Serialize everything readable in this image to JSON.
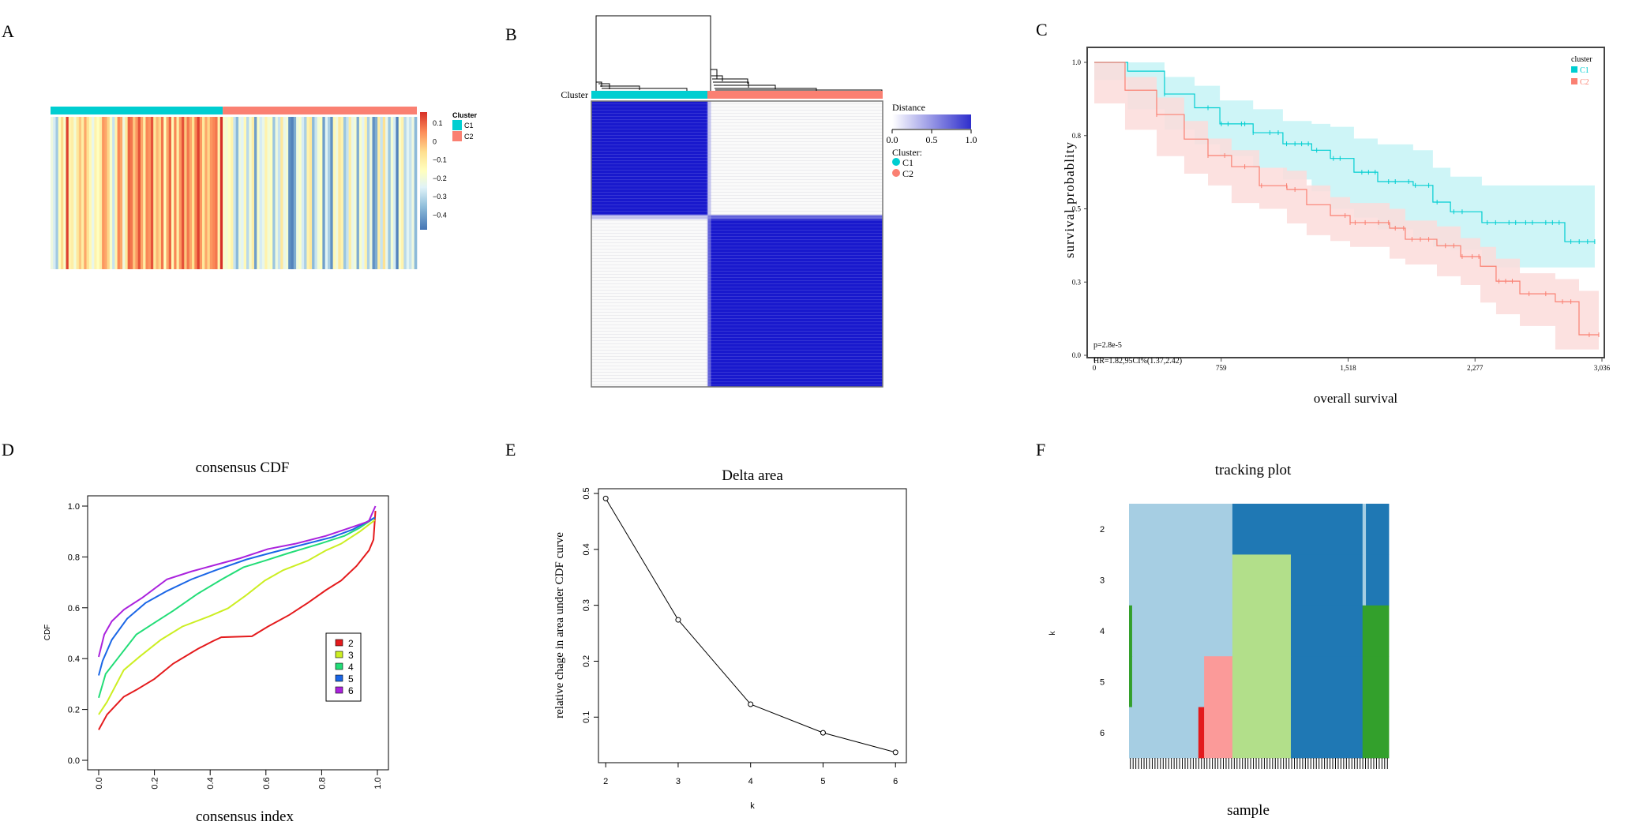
{
  "figure": {
    "panel_labels": [
      "A",
      "B",
      "C",
      "D",
      "E",
      "F"
    ]
  },
  "chart_data": [
    {
      "panel": "A",
      "type": "heatmap",
      "title": "",
      "annotation": {
        "name": "Cluster",
        "groups": [
          {
            "label": "C1",
            "color": "#00CED1",
            "fraction": 0.47
          },
          {
            "label": "C2",
            "color": "#FA8072",
            "fraction": 0.53
          }
        ]
      },
      "colorbar": {
        "ticks": [
          "0.1",
          "0",
          "−0.1",
          "−0.2",
          "−0.3",
          "−0.4"
        ],
        "tick_values": [
          0.1,
          0,
          -0.1,
          -0.2,
          -0.3,
          -0.4
        ],
        "range": [
          -0.48,
          0.16
        ],
        "colors": [
          "#4575B4",
          "#91BFDB",
          "#E0F3F8",
          "#FFFFBF",
          "#FEE090",
          "#FC8D59",
          "#D73027"
        ]
      },
      "legend": {
        "title": "Cluster",
        "items": [
          {
            "label": "C1",
            "color": "#00CED1"
          },
          {
            "label": "C2",
            "color": "#FA8072"
          }
        ]
      },
      "c1_column_values": [
        -0.22,
        -0.28,
        -0.35,
        -0.15,
        -0.05,
        -0.18,
        0.14,
        -0.12,
        -0.1,
        -0.2,
        -0.08,
        -0.02,
        -0.1,
        0.02,
        -0.06,
        -0.14,
        -0.24,
        -0.12,
        -0.16,
        -0.1,
        0.04,
        0.02,
        -0.04,
        -0.18,
        -0.3,
        -0.12,
        0.06,
        0.02,
        -0.22,
        -0.08,
        0.1,
        0.08,
        -0.02,
        0.04,
        0.12,
        0.02,
        -0.1,
        0.06,
        0.04,
        0.12,
        -0.08,
        0.0,
        -0.04,
        0.08,
        -0.16,
        0.02,
        0.1,
        -0.14,
        0.06,
        -0.1,
        0.04,
        0.12,
        -0.02,
        0.08,
        0.02,
        -0.06,
        0.06,
        0.14,
        0.04,
        -0.08,
        0.02,
        -0.04,
        0.04,
        0.06,
        0.08,
        -0.12,
        0.16
      ],
      "c2_column_values": [
        -0.18,
        -0.2,
        -0.16,
        -0.12,
        -0.3,
        -0.38,
        -0.22,
        -0.26,
        -0.14,
        -0.32,
        -0.2,
        -0.1,
        -0.42,
        -0.18,
        -0.28,
        -0.24,
        -0.12,
        -0.2,
        -0.16,
        -0.36,
        -0.22,
        -0.3,
        -0.08,
        -0.24,
        -0.2,
        -0.44,
        -0.46,
        -0.4,
        -0.22,
        -0.18,
        -0.28,
        -0.34,
        -0.12,
        -0.08,
        -0.38,
        -0.3,
        -0.2,
        -0.16,
        -0.42,
        -0.26,
        -0.34,
        -0.44,
        -0.14,
        -0.22,
        -0.08,
        -0.12,
        -0.36,
        -0.3,
        -0.1,
        -0.24,
        -0.2,
        -0.4,
        -0.18,
        -0.26,
        -0.12,
        -0.34,
        -0.22,
        -0.44,
        -0.4,
        -0.1,
        -0.3,
        -0.06,
        -0.24,
        -0.36,
        -0.2,
        -0.28,
        -0.46,
        -0.18,
        -0.12,
        -0.32,
        -0.26,
        -0.3,
        -0.22,
        -0.38
      ]
    },
    {
      "panel": "B",
      "type": "heatmap",
      "title": "",
      "row_label": "Cluster",
      "blocks": [
        {
          "rows": "C1",
          "cols": "C1",
          "distance": 1.0
        },
        {
          "rows": "C1",
          "cols": "C2",
          "distance": 0.0
        },
        {
          "rows": "C2",
          "cols": "C1",
          "distance": 0.0
        },
        {
          "rows": "C2",
          "cols": "C2",
          "distance": 1.0
        }
      ],
      "cluster_fraction_c1": 0.4,
      "colorbar": {
        "title": "Distance",
        "ticks": [
          "0.0",
          "0.5",
          "1.0"
        ],
        "tick_values": [
          0,
          0.5,
          1.0
        ],
        "low_color": "#FFFFFF",
        "high_color": "#2E2ECC"
      },
      "legend": {
        "title": "Cluster:",
        "items": [
          {
            "label": "C1",
            "color": "#00CED1"
          },
          {
            "label": "C2",
            "color": "#FA8072"
          }
        ]
      },
      "block_color": "#1919CD"
    },
    {
      "panel": "C",
      "type": "line",
      "title": "",
      "xlabel": "overall survival",
      "ylabel": "survival probablity",
      "xlim": [
        0,
        3036
      ],
      "ylim": [
        0,
        1
      ],
      "xticks": [
        0,
        759,
        1518,
        2277,
        3036
      ],
      "xtick_labels": [
        "0",
        "759",
        "1,518",
        "2,277",
        "3,036"
      ],
      "yticks": [
        0,
        0.25,
        0.5,
        0.75,
        1.0
      ],
      "ytick_labels": [
        "0.0",
        "0.3",
        "0.5",
        "0.8",
        "1.0"
      ],
      "legend": {
        "title": "cluster",
        "position": "top-right"
      },
      "annotations": [
        "p=2.8e-5",
        "HR=1.82,95CI%(1.37,2.42)"
      ],
      "series": [
        {
          "name": "C1",
          "color": "#00CED1",
          "band_color": "#C6F3F6",
          "x": [
            0,
            200,
            420,
            600,
            751,
            950,
            1128,
            1300,
            1412,
            1553,
            1695,
            1907,
            2025,
            2130,
            2318,
            2814,
            2993
          ],
          "y": [
            1.0,
            0.97,
            0.892,
            0.845,
            0.79,
            0.76,
            0.722,
            0.7,
            0.672,
            0.625,
            0.593,
            0.58,
            0.523,
            0.49,
            0.453,
            0.388,
            0.388
          ],
          "lower": [
            1.0,
            0.94,
            0.84,
            0.77,
            0.72,
            0.68,
            0.64,
            0.6,
            0.56,
            0.5,
            0.47,
            0.43,
            0.4,
            0.37,
            0.36,
            0.3,
            0.3
          ],
          "upper": [
            1.0,
            1.0,
            0.95,
            0.92,
            0.87,
            0.84,
            0.8,
            0.79,
            0.78,
            0.74,
            0.72,
            0.7,
            0.64,
            0.61,
            0.58,
            0.58,
            0.58
          ],
          "censor_x": [
            420,
            680,
            760,
            800,
            880,
            900,
            950,
            1050,
            1100,
            1150,
            1200,
            1240,
            1280,
            1330,
            1430,
            1470,
            1600,
            1640,
            1680,
            1760,
            1800,
            1880,
            1920,
            2000,
            2050,
            2150,
            2200,
            2350,
            2400,
            2480,
            2520,
            2580,
            2620,
            2700,
            2740,
            2780,
            2850,
            2900,
            2950,
            2993
          ]
        },
        {
          "name": "C2",
          "color": "#FA8072",
          "band_color": "#FCDCDA",
          "x": [
            0,
            184,
            373,
            538,
            680,
            821,
            987,
            1152,
            1270,
            1412,
            1530,
            1766,
            1860,
            2049,
            2191,
            2309,
            2403,
            2545,
            2757,
            2899,
            3017
          ],
          "y": [
            1.0,
            0.905,
            0.822,
            0.738,
            0.682,
            0.644,
            0.579,
            0.566,
            0.514,
            0.477,
            0.453,
            0.434,
            0.396,
            0.374,
            0.337,
            0.304,
            0.253,
            0.21,
            0.183,
            0.07,
            0.07
          ],
          "lower": [
            1.0,
            0.86,
            0.77,
            0.68,
            0.62,
            0.58,
            0.52,
            0.5,
            0.45,
            0.41,
            0.39,
            0.37,
            0.33,
            0.31,
            0.27,
            0.24,
            0.18,
            0.14,
            0.1,
            0.02,
            0.02
          ],
          "upper": [
            1.0,
            0.95,
            0.88,
            0.8,
            0.74,
            0.7,
            0.64,
            0.63,
            0.58,
            0.54,
            0.52,
            0.5,
            0.46,
            0.44,
            0.4,
            0.37,
            0.33,
            0.28,
            0.26,
            0.22,
            0.22
          ],
          "censor_x": [
            373,
            680,
            780,
            900,
            1000,
            1150,
            1200,
            1500,
            1530,
            1560,
            1620,
            1700,
            1760,
            1800,
            1850,
            1900,
            1950,
            2000,
            2100,
            2150,
            2200,
            2260,
            2300,
            2420,
            2460,
            2500,
            2600,
            2700,
            2800,
            2850,
            2960,
            3017
          ]
        }
      ]
    },
    {
      "panel": "D",
      "type": "line",
      "title": "consensus CDF",
      "xlabel": "consensus index",
      "ylabel": "CDF",
      "xlim": [
        0,
        1
      ],
      "ylim": [
        0,
        1
      ],
      "xticks": [
        0,
        0.2,
        0.4,
        0.6,
        0.8,
        1.0
      ],
      "xtick_labels": [
        "0.0",
        "0.2",
        "0.4",
        "0.6",
        "0.8",
        "1.0"
      ],
      "yticks": [
        0,
        0.2,
        0.4,
        0.6,
        0.8,
        1.0
      ],
      "ytick_labels": [
        "0.0",
        "0.2",
        "0.4",
        "0.6",
        "0.8",
        "1.0"
      ],
      "legend": {
        "position": "right-middle"
      },
      "series": [
        {
          "name": "2",
          "color": "#E41A1C",
          "x": [
            0,
            0.03,
            0.09,
            0.135,
            0.2,
            0.267,
            0.355,
            0.41,
            0.44,
            0.55,
            0.607,
            0.684,
            0.75,
            0.816,
            0.87,
            0.925,
            0.97,
            0.986,
            0.993
          ],
          "y": [
            0.12,
            0.18,
            0.25,
            0.277,
            0.32,
            0.38,
            0.438,
            0.469,
            0.484,
            0.488,
            0.526,
            0.572,
            0.619,
            0.67,
            0.707,
            0.764,
            0.826,
            0.868,
            0.981
          ]
        },
        {
          "name": "3",
          "color": "#CCEE22",
          "x": [
            0,
            0.03,
            0.09,
            0.146,
            0.223,
            0.3,
            0.398,
            0.464,
            0.53,
            0.596,
            0.662,
            0.75,
            0.816,
            0.87,
            0.936,
            0.991
          ],
          "y": [
            0.18,
            0.23,
            0.355,
            0.407,
            0.474,
            0.526,
            0.567,
            0.598,
            0.65,
            0.707,
            0.748,
            0.785,
            0.826,
            0.852,
            0.899,
            0.945
          ]
        },
        {
          "name": "4",
          "color": "#22DD77",
          "x": [
            0,
            0.025,
            0.069,
            0.135,
            0.2,
            0.267,
            0.355,
            0.442,
            0.519,
            0.596,
            0.684,
            0.794,
            0.882,
            0.936,
            0.991
          ],
          "y": [
            0.246,
            0.34,
            0.402,
            0.495,
            0.541,
            0.588,
            0.655,
            0.712,
            0.759,
            0.785,
            0.816,
            0.852,
            0.883,
            0.914,
            0.955
          ]
        },
        {
          "name": "5",
          "color": "#1A66E6",
          "x": [
            0,
            0.014,
            0.047,
            0.102,
            0.168,
            0.245,
            0.333,
            0.42,
            0.53,
            0.618,
            0.728,
            0.838,
            0.914,
            0.991
          ],
          "y": [
            0.334,
            0.391,
            0.474,
            0.557,
            0.619,
            0.666,
            0.712,
            0.748,
            0.79,
            0.816,
            0.847,
            0.878,
            0.909,
            0.955
          ]
        },
        {
          "name": "6",
          "color": "#AA22DD",
          "x": [
            0,
            0.02,
            0.047,
            0.091,
            0.157,
            0.245,
            0.333,
            0.42,
            0.508,
            0.607,
            0.706,
            0.816,
            0.914,
            0.969,
            0.993
          ],
          "y": [
            0.407,
            0.495,
            0.547,
            0.593,
            0.64,
            0.712,
            0.743,
            0.769,
            0.795,
            0.831,
            0.852,
            0.883,
            0.919,
            0.94,
            1.0
          ]
        }
      ]
    },
    {
      "panel": "E",
      "type": "line",
      "title": "Delta area",
      "xlabel": "k",
      "ylabel": "relative chage in area under CDF  curve",
      "x": [
        2,
        3,
        4,
        5,
        6
      ],
      "y": [
        0.491,
        0.274,
        0.123,
        0.072,
        0.037
      ],
      "xlim": [
        1.9,
        6.15
      ],
      "ylim": [
        0.0185,
        0.5085
      ],
      "xticks": [
        2,
        3,
        4,
        5,
        6
      ],
      "xtick_labels": [
        "2",
        "3",
        "4",
        "5",
        "6"
      ],
      "yticks": [
        0.1,
        0.2,
        0.3,
        0.4,
        0.5
      ],
      "ytick_labels": [
        "0.1",
        "0.2",
        "0.3",
        "0.4",
        "0.5"
      ]
    },
    {
      "panel": "F",
      "type": "heatmap",
      "title": "tracking plot",
      "xlabel": "sample",
      "ylabel": "k",
      "rows": [
        "2",
        "3",
        "4",
        "5",
        "6"
      ],
      "n_sample_ticks": 95,
      "segments": [
        {
          "row": "2",
          "from": 0,
          "to": 0.398,
          "color": "#A6CEE3"
        },
        {
          "row": "2",
          "from": 0.398,
          "to": 0.899,
          "color": "#1F78B4"
        },
        {
          "row": "2",
          "from": 0.899,
          "to": 0.912,
          "color": "#A6CEE3"
        },
        {
          "row": "2",
          "from": 0.912,
          "to": 1.0,
          "color": "#1F78B4"
        },
        {
          "row": "3",
          "from": 0,
          "to": 0.398,
          "color": "#A6CEE3"
        },
        {
          "row": "3",
          "from": 0.398,
          "to": 0.623,
          "color": "#B2DF8A"
        },
        {
          "row": "3",
          "from": 0.623,
          "to": 0.899,
          "color": "#1F78B4"
        },
        {
          "row": "3",
          "from": 0.899,
          "to": 0.912,
          "color": "#A6CEE3"
        },
        {
          "row": "3",
          "from": 0.912,
          "to": 1.0,
          "color": "#1F78B4"
        },
        {
          "row": "4",
          "from": 0,
          "to": 0.012,
          "color": "#33A02C"
        },
        {
          "row": "4",
          "from": 0.012,
          "to": 0.398,
          "color": "#A6CEE3"
        },
        {
          "row": "4",
          "from": 0.398,
          "to": 0.623,
          "color": "#B2DF8A"
        },
        {
          "row": "4",
          "from": 0.623,
          "to": 0.899,
          "color": "#1F78B4"
        },
        {
          "row": "4",
          "from": 0.899,
          "to": 1.0,
          "color": "#33A02C"
        },
        {
          "row": "5",
          "from": 0,
          "to": 0.012,
          "color": "#33A02C"
        },
        {
          "row": "5",
          "from": 0.012,
          "to": 0.289,
          "color": "#A6CEE3"
        },
        {
          "row": "5",
          "from": 0.289,
          "to": 0.398,
          "color": "#FB9A99"
        },
        {
          "row": "5",
          "from": 0.398,
          "to": 0.623,
          "color": "#B2DF8A"
        },
        {
          "row": "5",
          "from": 0.623,
          "to": 0.899,
          "color": "#1F78B4"
        },
        {
          "row": "5",
          "from": 0.899,
          "to": 1.0,
          "color": "#33A02C"
        },
        {
          "row": "6",
          "from": 0,
          "to": 0.267,
          "color": "#A6CEE3"
        },
        {
          "row": "6",
          "from": 0.267,
          "to": 0.289,
          "color": "#E31A1C"
        },
        {
          "row": "6",
          "from": 0.289,
          "to": 0.398,
          "color": "#FB9A99"
        },
        {
          "row": "6",
          "from": 0.398,
          "to": 0.623,
          "color": "#B2DF8A"
        },
        {
          "row": "6",
          "from": 0.623,
          "to": 0.899,
          "color": "#1F78B4"
        },
        {
          "row": "6",
          "from": 0.899,
          "to": 1.0,
          "color": "#33A02C"
        }
      ]
    }
  ]
}
